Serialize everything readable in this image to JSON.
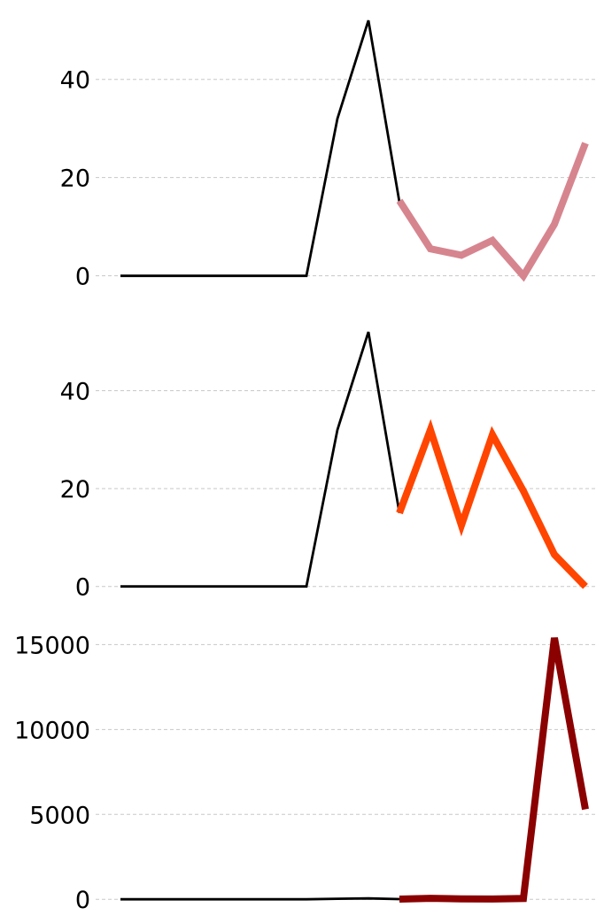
{
  "chart_data": [
    {
      "type": "line",
      "x": [
        0,
        1,
        2,
        3,
        4,
        5,
        6,
        7,
        8,
        9,
        10,
        11,
        12,
        13,
        14,
        15
      ],
      "series": [
        {
          "values": [
            0,
            0,
            0,
            0,
            0,
            0,
            0,
            32,
            52,
            15,
            null,
            null,
            null,
            null,
            null,
            null
          ],
          "color": "#000000"
        },
        {
          "values": [
            null,
            null,
            null,
            null,
            null,
            null,
            null,
            null,
            null,
            15.3,
            5.5,
            4.2,
            7.2,
            0,
            10.5,
            27
          ],
          "color": "#d6858f"
        }
      ],
      "yticks": [
        0,
        20,
        40
      ],
      "ylim": [
        -1.5,
        54
      ],
      "grid": true
    },
    {
      "type": "line",
      "x": [
        0,
        1,
        2,
        3,
        4,
        5,
        6,
        7,
        8,
        9,
        10,
        11,
        12,
        13,
        14,
        15
      ],
      "series": [
        {
          "values": [
            0,
            0,
            0,
            0,
            0,
            0,
            0,
            32,
            52,
            15,
            null,
            null,
            null,
            null,
            null,
            null
          ],
          "color": "#000000"
        },
        {
          "values": [
            null,
            null,
            null,
            null,
            null,
            null,
            null,
            null,
            null,
            15,
            32,
            12.5,
            31,
            19.5,
            6.5,
            0
          ],
          "color": "#ff4500"
        }
      ],
      "yticks": [
        0,
        20,
        40
      ],
      "ylim": [
        -1.5,
        54
      ],
      "grid": true
    },
    {
      "type": "line",
      "x": [
        0,
        1,
        2,
        3,
        4,
        5,
        6,
        7,
        8,
        9,
        10,
        11,
        12,
        13,
        14,
        15
      ],
      "series": [
        {
          "values": [
            0,
            0,
            0,
            0,
            0,
            0,
            0,
            32,
            52,
            15,
            null,
            null,
            null,
            null,
            null,
            null
          ],
          "color": "#000000"
        },
        {
          "values": [
            null,
            null,
            null,
            null,
            null,
            null,
            null,
            null,
            null,
            15,
            60,
            30,
            20,
            50,
            15400,
            5300
          ],
          "color": "#8b0000"
        }
      ],
      "yticks": [
        0,
        5000,
        10000,
        15000
      ],
      "ylim": [
        -300,
        15700
      ],
      "grid": true
    }
  ]
}
